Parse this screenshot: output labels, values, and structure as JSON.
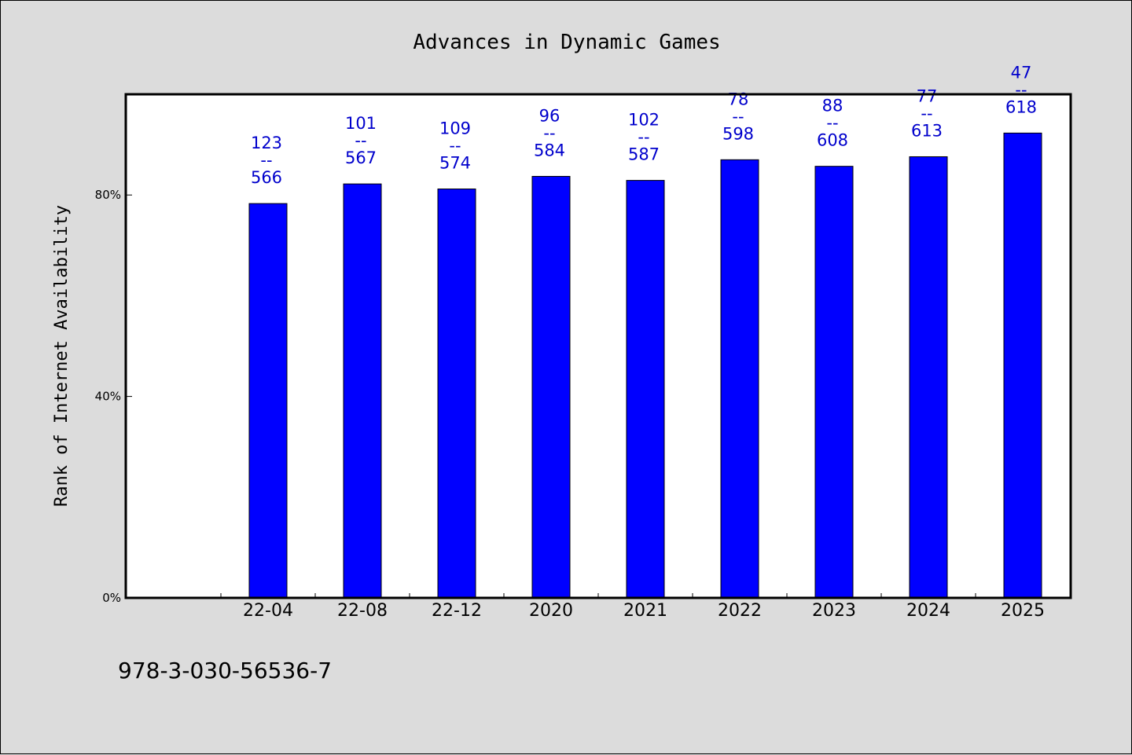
{
  "chart_data": {
    "type": "bar",
    "title": "Advances in Dynamic Games",
    "xlabel": "",
    "ylabel": "Rank of Internet Availability",
    "categories": [
      "22-04",
      "22-08",
      "22-12",
      "2020",
      "2021",
      "2022",
      "2023",
      "2024",
      "2025"
    ],
    "values": [
      78.3,
      82.2,
      81.2,
      83.7,
      82.9,
      87.0,
      85.7,
      87.6,
      92.3
    ],
    "data_labels": [
      {
        "top": "123",
        "sep": "--",
        "bottom": "566"
      },
      {
        "top": "101",
        "sep": "--",
        "bottom": "567"
      },
      {
        "top": "109",
        "sep": "--",
        "bottom": "574"
      },
      {
        "top": "96",
        "sep": "--",
        "bottom": "584"
      },
      {
        "top": "102",
        "sep": "--",
        "bottom": "587"
      },
      {
        "top": "78",
        "sep": "--",
        "bottom": "598"
      },
      {
        "top": "88",
        "sep": "--",
        "bottom": "608"
      },
      {
        "top": "77",
        "sep": "--",
        "bottom": "613"
      },
      {
        "top": "47",
        "sep": "--",
        "bottom": "618"
      }
    ],
    "ylim": [
      0,
      100
    ],
    "yticks": [
      0,
      40,
      80
    ],
    "ytick_labels": [
      "0%",
      "40%",
      "80%"
    ],
    "grid": false,
    "legend": "none",
    "bar_color": "#0000ff",
    "label_color": "#0000cc",
    "background_color": "#dcdcdc",
    "plot_background_color": "#ffffff"
  },
  "footer": {
    "isbn": "978-3-030-56536-7"
  }
}
